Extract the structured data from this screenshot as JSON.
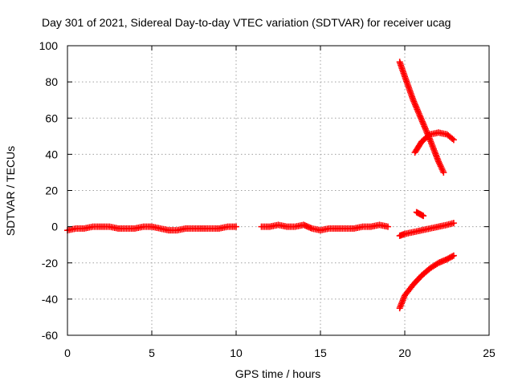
{
  "chart_data": {
    "type": "scatter",
    "title": "Day 301 of 2021, Sidereal Day-to-day VTEC variation (SDTVAR) for receiver ucag",
    "xlabel": "GPS time / hours",
    "ylabel": "SDTVAR / TECUs",
    "xlim": [
      0,
      25
    ],
    "ylim": [
      -60,
      100
    ],
    "xticks": [
      "0",
      "5",
      "10",
      "15",
      "20",
      "25"
    ],
    "yticks": [
      "-60",
      "-40",
      "-20",
      "0",
      "20",
      "40",
      "60",
      "80",
      "100"
    ],
    "grid": true,
    "marker": "plus",
    "color": "#ff0000",
    "series": [
      {
        "x": [
          0.0,
          0.5,
          1.0,
          1.5,
          2.0,
          2.5,
          3.0,
          3.5,
          4.0,
          4.5,
          5.0,
          5.5,
          6.0,
          6.5,
          7.0,
          7.5,
          8.0,
          8.5,
          9.0,
          9.5,
          10.0
        ],
        "y": [
          -2,
          -1,
          -1,
          0,
          0,
          0,
          -1,
          -1,
          -1,
          0,
          0,
          -1,
          -2,
          -2,
          -1,
          -1,
          -1,
          -1,
          -1,
          0,
          0
        ]
      },
      {
        "x": [
          11.5,
          12.0,
          12.5,
          13.0,
          13.5,
          14.0,
          14.5,
          15.0,
          15.5,
          16.0,
          16.5,
          17.0,
          17.5,
          18.0,
          18.5,
          19.0
        ],
        "y": [
          0,
          0,
          1,
          0,
          0,
          1,
          -1,
          -2,
          -1,
          -1,
          -1,
          -1,
          0,
          0,
          1,
          0
        ]
      },
      {
        "x": [
          19.7,
          20.0,
          20.5,
          21.0,
          21.5,
          22.0,
          22.5,
          22.9
        ],
        "y": [
          -5,
          -4,
          -3,
          -2,
          -1,
          0,
          1,
          2
        ]
      },
      {
        "x": [
          19.7,
          20.0,
          20.5,
          21.0,
          21.5,
          22.0,
          22.5,
          22.9
        ],
        "y": [
          -45,
          -38,
          -32,
          -27,
          -23,
          -20,
          -18,
          -16
        ]
      },
      {
        "x": [
          19.7,
          20.0,
          20.5,
          21.0,
          21.5,
          22.0,
          22.3
        ],
        "y": [
          91,
          83,
          70,
          59,
          48,
          36,
          30
        ]
      },
      {
        "x": [
          20.6,
          21.0,
          21.5,
          22.0,
          22.5,
          22.9
        ],
        "y": [
          41,
          47,
          51,
          52,
          51,
          48
        ]
      },
      {
        "x": [
          20.7,
          20.9,
          21.1
        ],
        "y": [
          8,
          7,
          6
        ]
      }
    ]
  }
}
